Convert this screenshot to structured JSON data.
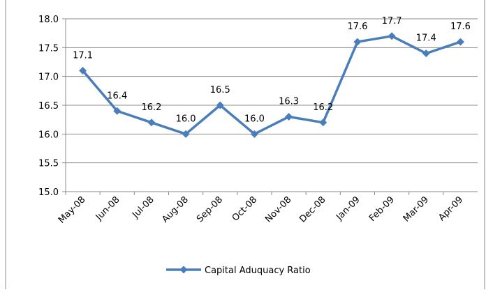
{
  "chart_data": {
    "type": "line",
    "categories": [
      "May-08",
      "Jun-08",
      "Jul-08",
      "Aug-08",
      "Sep-08",
      "Oct-08",
      "Nov-08",
      "Dec-08",
      "Jan-09",
      "Feb-09",
      "Mar-09",
      "Apr-09"
    ],
    "series": [
      {
        "name": "Capital Aduquacy Ratio",
        "color": "#4a7ebb",
        "values": [
          17.1,
          16.4,
          16.2,
          16.0,
          16.5,
          16.0,
          16.3,
          16.2,
          17.6,
          17.7,
          17.4,
          17.6
        ],
        "value_labels": [
          "17.1",
          "16.4",
          "16.2",
          "16.0",
          "16.5",
          "16.0",
          "16.3",
          "16.2",
          "17.6",
          "17.7",
          "17.4",
          "17.6"
        ]
      }
    ],
    "ylim": [
      15,
      18
    ],
    "yticks": [
      {
        "value": 15,
        "label": "15.0"
      },
      15.5,
      {
        "value": 16,
        "label": "16.0"
      },
      16.5,
      {
        "value": 17,
        "label": "17.0"
      },
      17.5,
      {
        "value": 18,
        "label": "18.0"
      }
    ],
    "grid": true,
    "legend": "bottom"
  }
}
